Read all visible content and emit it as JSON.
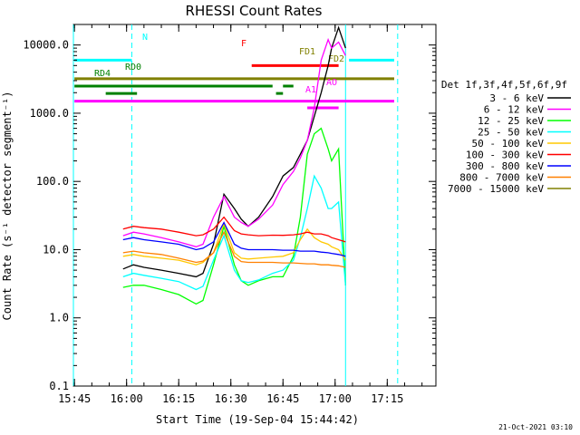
{
  "chart_data": {
    "type": "line",
    "title": "RHESSI Count Rates",
    "xlabel": "Start Time (19-Sep-04 15:44:42)",
    "ylabel": "Count Rate (s⁻¹ detector segment⁻¹)",
    "y_scale": "log",
    "ylim": [
      0.1,
      20000
    ],
    "xlim": [
      "15:44:42",
      "17:29:00"
    ],
    "x_ticks": [
      "15:45",
      "16:00",
      "16:15",
      "16:30",
      "16:45",
      "17:00",
      "17:15"
    ],
    "y_ticks": [
      "0.1",
      "1.0",
      "10.0",
      "100.0",
      "1000.0",
      "10000.0"
    ],
    "legend_title": "Det 1f,3f,4f,5f,6f,9f",
    "legend_position": "right",
    "series": [
      {
        "name": "3 - 6 keV",
        "color": "#000000",
        "x": [
          "15:59",
          "16:02",
          "16:05",
          "16:10",
          "16:15",
          "16:20",
          "16:22",
          "16:25",
          "16:28",
          "16:31",
          "16:33",
          "16:35",
          "16:38",
          "16:42",
          "16:45",
          "16:48",
          "16:50",
          "16:52",
          "16:54",
          "16:56",
          "16:58",
          "16:59",
          "17:01",
          "17:03"
        ],
        "y": [
          5.2,
          6,
          5.5,
          5,
          4.5,
          4,
          4.5,
          12,
          65,
          40,
          28,
          22,
          30,
          60,
          120,
          160,
          250,
          400,
          900,
          2000,
          5000,
          9000,
          18000,
          9000
        ]
      },
      {
        "name": "6 - 12 keV",
        "color": "#ff00ff",
        "x": [
          "15:59",
          "16:02",
          "16:05",
          "16:10",
          "16:15",
          "16:20",
          "16:22",
          "16:25",
          "16:28",
          "16:31",
          "16:33",
          "16:35",
          "16:38",
          "16:42",
          "16:45",
          "16:48",
          "16:50",
          "16:52",
          "16:54",
          "16:56",
          "16:58",
          "16:59",
          "17:01",
          "17:03"
        ],
        "y": [
          16,
          18,
          17,
          15,
          13,
          11,
          12,
          30,
          60,
          30,
          25,
          22,
          28,
          45,
          90,
          140,
          220,
          400,
          1200,
          6000,
          12000,
          9000,
          11000,
          7000
        ]
      },
      {
        "name": "12 - 25 keV",
        "color": "#00ff00",
        "x": [
          "15:59",
          "16:02",
          "16:05",
          "16:10",
          "16:15",
          "16:20",
          "16:22",
          "16:25",
          "16:28",
          "16:31",
          "16:33",
          "16:35",
          "16:38",
          "16:42",
          "16:45",
          "16:48",
          "16:50",
          "16:52",
          "16:54",
          "16:56",
          "16:58",
          "16:59",
          "17:01",
          "17:03"
        ],
        "y": [
          2.8,
          3,
          3,
          2.6,
          2.2,
          1.6,
          1.8,
          6,
          22,
          6,
          3.5,
          3,
          3.5,
          4,
          4,
          8,
          30,
          250,
          500,
          600,
          300,
          200,
          300,
          3
        ]
      },
      {
        "name": "25 - 50 keV",
        "color": "#00ffff",
        "x": [
          "15:59",
          "16:02",
          "16:05",
          "16:10",
          "16:15",
          "16:20",
          "16:22",
          "16:25",
          "16:28",
          "16:31",
          "16:33",
          "16:35",
          "16:38",
          "16:42",
          "16:45",
          "16:48",
          "16:50",
          "16:52",
          "16:54",
          "16:56",
          "16:58",
          "16:59",
          "17:01",
          "17:03"
        ],
        "y": [
          4,
          4.5,
          4.2,
          3.8,
          3.4,
          2.6,
          2.9,
          7,
          16,
          5,
          3.5,
          3.3,
          3.6,
          4.5,
          5,
          7,
          15,
          40,
          120,
          80,
          40,
          40,
          50,
          3
        ]
      },
      {
        "name": "50 - 100 keV",
        "color": "#ffc800",
        "x": [
          "15:59",
          "16:02",
          "16:05",
          "16:10",
          "16:15",
          "16:20",
          "16:22",
          "16:25",
          "16:28",
          "16:31",
          "16:33",
          "16:35",
          "16:38",
          "16:42",
          "16:45",
          "16:48",
          "16:50",
          "16:52",
          "16:54",
          "16:56",
          "16:58",
          "16:59",
          "17:01",
          "17:03"
        ],
        "y": [
          8,
          8.5,
          8,
          7.5,
          7,
          6,
          6.5,
          9,
          24,
          9,
          7.5,
          7.3,
          7.5,
          7.8,
          8,
          9,
          14,
          20,
          15,
          13,
          12,
          11,
          10,
          7
        ]
      },
      {
        "name": "100 - 300 keV",
        "color": "#ff0000",
        "x": [
          "15:59",
          "16:02",
          "16:05",
          "16:10",
          "16:15",
          "16:20",
          "16:22",
          "16:25",
          "16:28",
          "16:31",
          "16:33",
          "16:35",
          "16:38",
          "16:42",
          "16:45",
          "16:48",
          "16:50",
          "16:52",
          "16:54",
          "16:56",
          "16:58",
          "16:59",
          "17:01",
          "17:03"
        ],
        "y": [
          20,
          22,
          21,
          20,
          18,
          16,
          16.5,
          20,
          30,
          19,
          17,
          16.5,
          16,
          16.3,
          16.2,
          16.5,
          17,
          18,
          17,
          17,
          16,
          15,
          14,
          13
        ]
      },
      {
        "name": "300 - 800 keV",
        "color": "#0000ff",
        "x": [
          "15:59",
          "16:02",
          "16:05",
          "16:10",
          "16:15",
          "16:20",
          "16:22",
          "16:25",
          "16:28",
          "16:31",
          "16:33",
          "16:35",
          "16:38",
          "16:42",
          "16:45",
          "16:48",
          "16:50",
          "16:52",
          "16:54",
          "16:56",
          "16:58",
          "16:59",
          "17:01",
          "17:03"
        ],
        "y": [
          14,
          15,
          14,
          13,
          12,
          10,
          10.5,
          13,
          25,
          12,
          10.5,
          10,
          10,
          10,
          9.8,
          9.8,
          9.5,
          9.5,
          9.5,
          9.2,
          9,
          8.8,
          8.5,
          8
        ]
      },
      {
        "name": "800 - 7000 keV",
        "color": "#ff8000",
        "x": [
          "15:59",
          "16:02",
          "16:05",
          "16:10",
          "16:15",
          "16:20",
          "16:22",
          "16:25",
          "16:28",
          "16:31",
          "16:33",
          "16:35",
          "16:38",
          "16:42",
          "16:45",
          "16:48",
          "16:50",
          "16:52",
          "16:54",
          "16:56",
          "16:58",
          "16:59",
          "17:01",
          "17:03"
        ],
        "y": [
          9,
          9.5,
          9,
          8.5,
          7.5,
          6.5,
          6.8,
          9,
          18,
          8,
          6.7,
          6.5,
          6.5,
          6.5,
          6.4,
          6.4,
          6.3,
          6.2,
          6.2,
          6,
          6,
          5.9,
          5.8,
          5.5
        ]
      },
      {
        "name": "7000 - 15000 keV",
        "color": "#808000",
        "x": [],
        "y": []
      }
    ],
    "annotations": [
      {
        "label": "N",
        "color": "#00ffff",
        "segments": [
          [
            "15:45",
            "16:01:30"
          ],
          [
            "17:04",
            "17:17"
          ]
        ],
        "level": 6000
      },
      {
        "label": "F",
        "color": "#ff0000",
        "segments": [
          [
            "16:36",
            "17:01"
          ]
        ],
        "level": 5000
      },
      {
        "label": "FD1",
        "color": "#808000",
        "segments": [
          [
            "15:45",
            "17:17"
          ]
        ],
        "level": 3200
      },
      {
        "label": "FD2",
        "color": "#808000",
        "segments": [],
        "level": 2600
      },
      {
        "label": "RD0",
        "color": "#008000",
        "segments": [
          [
            "15:45",
            "16:42"
          ],
          [
            "16:45",
            "16:48"
          ]
        ],
        "level": 2500
      },
      {
        "label": "RD4",
        "color": "#008000",
        "segments": [
          [
            "15:54",
            "16:03"
          ],
          [
            "16:43",
            "16:45"
          ]
        ],
        "level": 1950
      },
      {
        "label": "A1",
        "color": "#ff00ff",
        "segments": [
          [
            "16:52",
            "17:01"
          ]
        ],
        "level": 1200
      },
      {
        "label": "AO",
        "color": "#ff00ff",
        "segments": [
          [
            "15:45",
            "17:17"
          ]
        ],
        "level": 1500
      }
    ],
    "timestamp": "21-Oct-2021 03:10"
  }
}
